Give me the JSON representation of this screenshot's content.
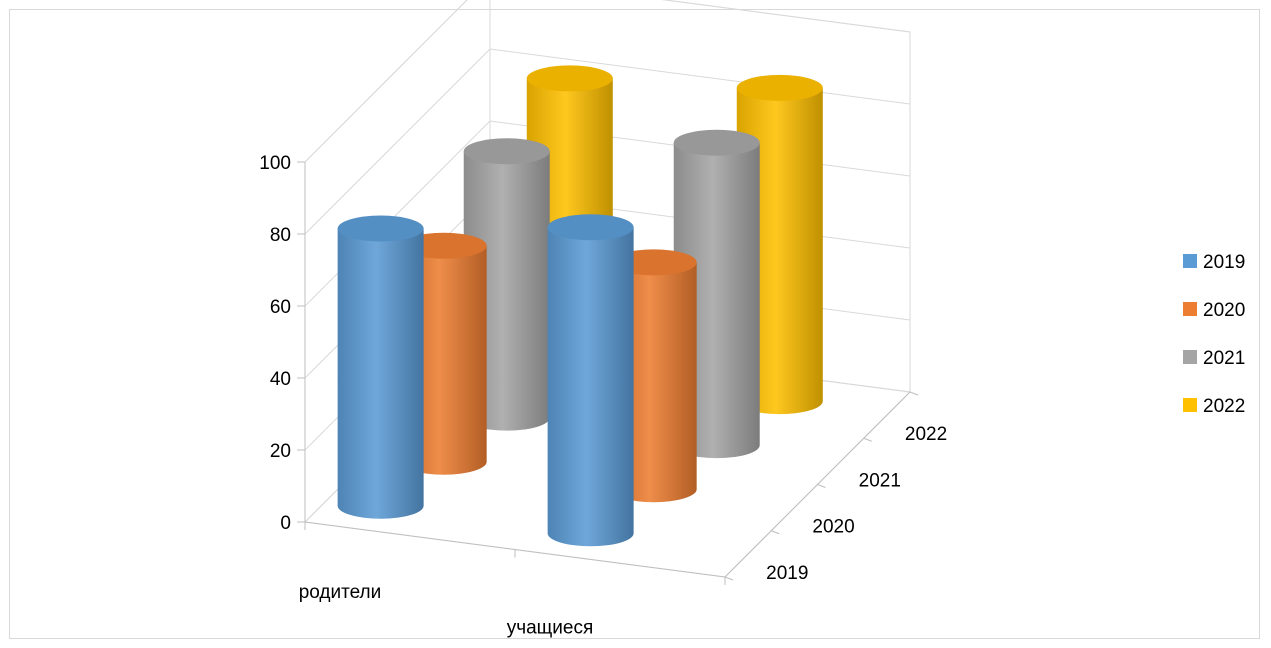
{
  "chart_data": {
    "type": "bar",
    "subtype": "3d-cylinder",
    "categories": [
      "родители",
      "учащиеся"
    ],
    "depth_categories": [
      "2019",
      "2020",
      "2021",
      "2022"
    ],
    "y_ticks": [
      "0",
      "20",
      "40",
      "60",
      "80",
      "100"
    ],
    "ylim": [
      0,
      100
    ],
    "series": [
      {
        "name": "2019",
        "color": "#5b9bd5",
        "values": [
          77,
          85
        ]
      },
      {
        "name": "2020",
        "color": "#ed7d31",
        "values": [
          60,
          63
        ]
      },
      {
        "name": "2021",
        "color": "#a5a5a5",
        "values": [
          74,
          84
        ]
      },
      {
        "name": "2022",
        "color": "#ffc000",
        "values": [
          82,
          87
        ]
      }
    ],
    "legend_position": "right",
    "grid": true
  }
}
